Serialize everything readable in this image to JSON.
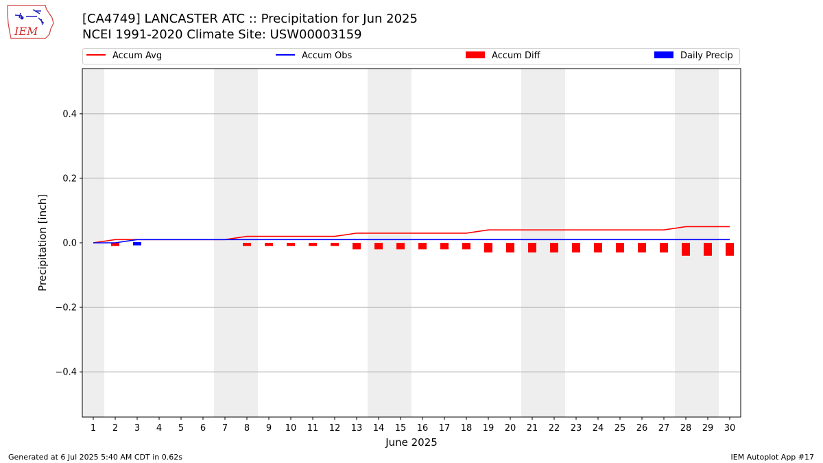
{
  "header": {
    "title_line1": "[CA4749] LANCASTER ATC :: Precipitation for Jun 2025",
    "title_line2": "NCEI 1991-2020 Climate Site: USW00003159",
    "logo_text": "IEM"
  },
  "legend": {
    "accum_avg": "Accum Avg",
    "accum_obs": "Accum Obs",
    "accum_diff": "Accum Diff",
    "daily_precip": "Daily Precip"
  },
  "footer": {
    "left": "Generated at 6 Jul 2025 5:40 AM CDT in 0.62s",
    "right": "IEM Autoplot App #17"
  },
  "colors": {
    "accum_avg": "#ff0000",
    "accum_obs": "#0000ff",
    "accum_diff": "#ff0000",
    "daily_precip": "#0000ff",
    "weekend_shade": "#eeeeee",
    "grid": "#b0b0b0"
  },
  "chart_data": {
    "type": "line",
    "xlabel": "June 2025",
    "ylabel": "Precipitation [inch]",
    "ylim": [
      -0.54,
      0.54
    ],
    "yticks": [
      -0.4,
      -0.2,
      0.0,
      0.2,
      0.4
    ],
    "ytick_labels": [
      "−0.4",
      "−0.2",
      "0.0",
      "0.2",
      "0.4"
    ],
    "x": [
      1,
      2,
      3,
      4,
      5,
      6,
      7,
      8,
      9,
      10,
      11,
      12,
      13,
      14,
      15,
      16,
      17,
      18,
      19,
      20,
      21,
      22,
      23,
      24,
      25,
      26,
      27,
      28,
      29,
      30
    ],
    "xtick_labels": [
      "1",
      "2",
      "3",
      "4",
      "5",
      "6",
      "7",
      "8",
      "9",
      "10",
      "11",
      "12",
      "13",
      "14",
      "15",
      "16",
      "17",
      "18",
      "19",
      "20",
      "21",
      "22",
      "23",
      "24",
      "25",
      "26",
      "27",
      "28",
      "29",
      "30"
    ],
    "weekend_days": [
      1,
      7,
      8,
      14,
      15,
      21,
      22,
      28,
      29
    ],
    "grid": "horizontal",
    "legend_position": "top",
    "series": [
      {
        "name": "Accum Avg",
        "kind": "line",
        "values": [
          0.0,
          0.01,
          0.01,
          0.01,
          0.01,
          0.01,
          0.01,
          0.02,
          0.02,
          0.02,
          0.02,
          0.02,
          0.03,
          0.03,
          0.03,
          0.03,
          0.03,
          0.03,
          0.04,
          0.04,
          0.04,
          0.04,
          0.04,
          0.04,
          0.04,
          0.04,
          0.04,
          0.05,
          0.05,
          0.05
        ]
      },
      {
        "name": "Accum Obs",
        "kind": "line",
        "values": [
          0.0,
          0.0,
          0.01,
          0.01,
          0.01,
          0.01,
          0.01,
          0.01,
          0.01,
          0.01,
          0.01,
          0.01,
          0.01,
          0.01,
          0.01,
          0.01,
          0.01,
          0.01,
          0.01,
          0.01,
          0.01,
          0.01,
          0.01,
          0.01,
          0.01,
          0.01,
          0.01,
          0.01,
          0.01,
          0.01
        ]
      },
      {
        "name": "Accum Diff",
        "kind": "bar",
        "values": [
          0.0,
          -0.01,
          0.0,
          0.0,
          0.0,
          0.0,
          0.0,
          -0.01,
          -0.01,
          -0.01,
          -0.01,
          -0.01,
          -0.02,
          -0.02,
          -0.02,
          -0.02,
          -0.02,
          -0.02,
          -0.03,
          -0.03,
          -0.03,
          -0.03,
          -0.03,
          -0.03,
          -0.03,
          -0.03,
          -0.03,
          -0.04,
          -0.04,
          -0.04
        ]
      },
      {
        "name": "Daily Precip",
        "kind": "bar",
        "values": [
          0,
          0,
          0.01,
          0,
          0,
          0,
          0,
          0,
          0,
          0,
          0,
          0,
          0,
          0,
          0,
          0,
          0,
          0,
          0,
          0,
          0,
          0,
          0,
          0,
          0,
          0,
          0,
          0,
          0,
          0
        ]
      }
    ]
  }
}
